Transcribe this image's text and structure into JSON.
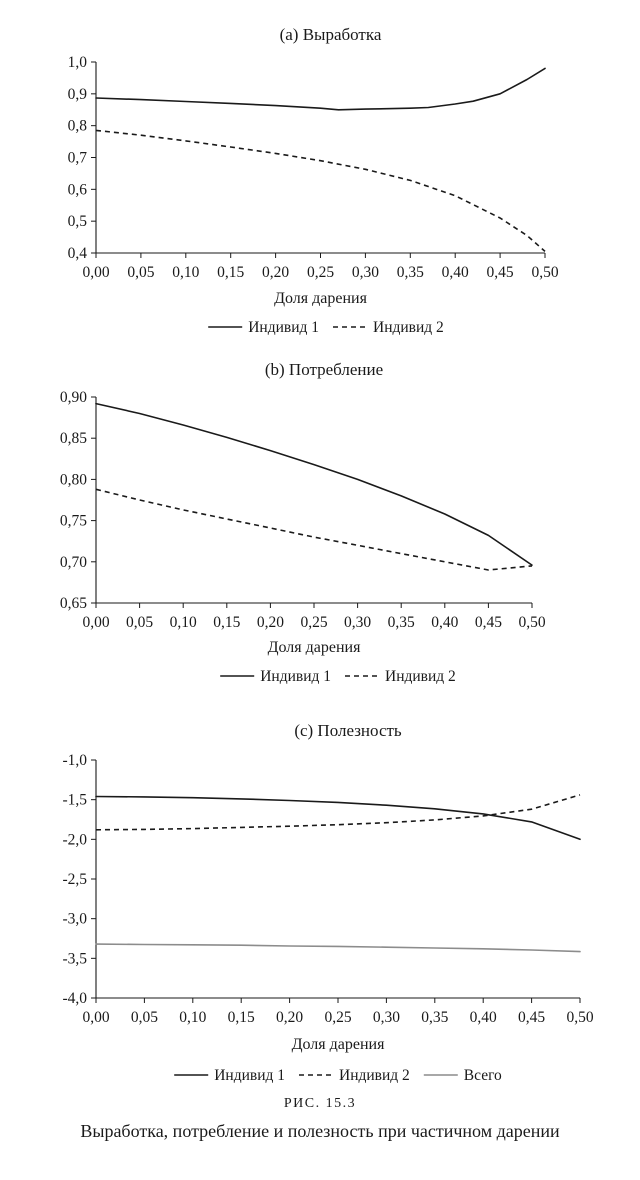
{
  "chart_data": [
    {
      "type": "line",
      "title": "(a) Выработка",
      "xlabel": "Доля дарения",
      "ylabel": "",
      "xlim": [
        0,
        0.5
      ],
      "ylim": [
        0.4,
        1.0
      ],
      "x_ticks": [
        "0,00",
        "0,05",
        "0,10",
        "0,15",
        "0,20",
        "0,25",
        "0,30",
        "0,35",
        "0,40",
        "0,45",
        "0,50"
      ],
      "y_ticks": [
        "0,4",
        "0,5",
        "0,6",
        "0,7",
        "0,8",
        "0,9",
        "1,0"
      ],
      "grid": false,
      "legend_position": "bottom",
      "series": [
        {
          "name": "Индивид 1",
          "style": "solid",
          "color": "#1a1a1a",
          "x": [
            0,
            0.05,
            0.1,
            0.15,
            0.2,
            0.25,
            0.27,
            0.3,
            0.35,
            0.37,
            0.4,
            0.42,
            0.45,
            0.48,
            0.5
          ],
          "y": [
            0.887,
            0.882,
            0.876,
            0.87,
            0.863,
            0.855,
            0.85,
            0.852,
            0.855,
            0.857,
            0.868,
            0.877,
            0.9,
            0.945,
            0.98
          ]
        },
        {
          "name": "Индивид 2",
          "style": "dashed",
          "color": "#1a1a1a",
          "x": [
            0,
            0.05,
            0.1,
            0.15,
            0.2,
            0.25,
            0.3,
            0.35,
            0.4,
            0.45,
            0.48,
            0.5
          ],
          "y": [
            0.785,
            0.77,
            0.752,
            0.733,
            0.713,
            0.69,
            0.663,
            0.628,
            0.58,
            0.51,
            0.455,
            0.405
          ]
        }
      ]
    },
    {
      "type": "line",
      "title": "(b) Потребление",
      "xlabel": "Доля дарения",
      "ylabel": "",
      "xlim": [
        0,
        0.5
      ],
      "ylim": [
        0.65,
        0.9
      ],
      "x_ticks": [
        "0,00",
        "0,05",
        "0,10",
        "0,15",
        "0,20",
        "0,25",
        "0,30",
        "0,35",
        "0,40",
        "0,45",
        "0,50"
      ],
      "y_ticks": [
        "0,65",
        "0,70",
        "0,75",
        "0,80",
        "0,85",
        "0,90"
      ],
      "grid": false,
      "legend_position": "bottom",
      "series": [
        {
          "name": "Индивид 1",
          "style": "solid",
          "color": "#1a1a1a",
          "x": [
            0,
            0.05,
            0.1,
            0.15,
            0.2,
            0.25,
            0.3,
            0.35,
            0.4,
            0.45,
            0.5
          ],
          "y": [
            0.892,
            0.88,
            0.866,
            0.851,
            0.835,
            0.818,
            0.8,
            0.78,
            0.758,
            0.732,
            0.696
          ]
        },
        {
          "name": "Индивид 2",
          "style": "dashed",
          "color": "#1a1a1a",
          "x": [
            0,
            0.05,
            0.1,
            0.15,
            0.2,
            0.25,
            0.3,
            0.35,
            0.4,
            0.45,
            0.5
          ],
          "y": [
            0.788,
            0.775,
            0.763,
            0.752,
            0.741,
            0.73,
            0.72,
            0.71,
            0.7,
            0.69,
            0.695
          ]
        }
      ]
    },
    {
      "type": "line",
      "title": "(c) Полезность",
      "xlabel": "Доля дарения",
      "ylabel": "",
      "xlim": [
        0,
        0.5
      ],
      "ylim": [
        -4.0,
        -1.0
      ],
      "x_ticks": [
        "0,00",
        "0,05",
        "0,10",
        "0,15",
        "0,20",
        "0,25",
        "0,30",
        "0,35",
        "0,40",
        "0,45",
        "0,50"
      ],
      "y_ticks": [
        "-4,0",
        "-3,5",
        "-3,0",
        "-2,5",
        "-2,0",
        "-1,5",
        "-1,0"
      ],
      "grid": false,
      "legend_position": "bottom",
      "series": [
        {
          "name": "Индивид 1",
          "style": "solid",
          "color": "#1a1a1a",
          "x": [
            0,
            0.05,
            0.1,
            0.15,
            0.2,
            0.25,
            0.3,
            0.35,
            0.4,
            0.45,
            0.5
          ],
          "y": [
            -1.46,
            -1.465,
            -1.475,
            -1.49,
            -1.51,
            -1.535,
            -1.57,
            -1.615,
            -1.68,
            -1.78,
            -2.0
          ]
        },
        {
          "name": "Индивид 2",
          "style": "dashed",
          "color": "#1a1a1a",
          "x": [
            0,
            0.05,
            0.1,
            0.15,
            0.2,
            0.25,
            0.3,
            0.35,
            0.4,
            0.45,
            0.5
          ],
          "y": [
            -1.88,
            -1.875,
            -1.865,
            -1.85,
            -1.835,
            -1.815,
            -1.79,
            -1.755,
            -1.705,
            -1.62,
            -1.44
          ]
        },
        {
          "name": "Всего",
          "style": "solid",
          "color": "#8c8c8c",
          "x": [
            0,
            0.05,
            0.1,
            0.15,
            0.2,
            0.25,
            0.3,
            0.35,
            0.4,
            0.45,
            0.5
          ],
          "y": [
            -3.32,
            -3.325,
            -3.33,
            -3.335,
            -3.345,
            -3.35,
            -3.36,
            -3.37,
            -3.38,
            -3.395,
            -3.415
          ]
        }
      ]
    }
  ],
  "caption": {
    "label": "РИС. 15.3",
    "text": "Выработка, потребление и полезность при частичном дарении"
  }
}
